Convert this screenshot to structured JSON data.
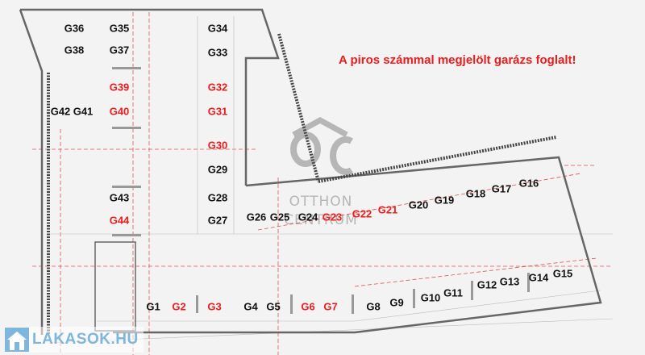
{
  "notice": "A piros számmal megjelölt garázs foglalt!",
  "colors": {
    "occupied": "#ee1c1c",
    "free": "#111111",
    "wall": "#666666",
    "gridline": "#e05050"
  },
  "watermark": {
    "logo": "OC",
    "line1": "OTTHON",
    "line2": "CENTRUM"
  },
  "site_logo": {
    "text": "LAKASOK.HU",
    "icon": "house-icon"
  },
  "garages": [
    {
      "label": "G1",
      "occupied": false
    },
    {
      "label": "G2",
      "occupied": true
    },
    {
      "label": "G3",
      "occupied": true
    },
    {
      "label": "G4",
      "occupied": false
    },
    {
      "label": "G5",
      "occupied": false
    },
    {
      "label": "G6",
      "occupied": true
    },
    {
      "label": "G7",
      "occupied": true
    },
    {
      "label": "G8",
      "occupied": false
    },
    {
      "label": "G9",
      "occupied": false
    },
    {
      "label": "G10",
      "occupied": false
    },
    {
      "label": "G11",
      "occupied": false
    },
    {
      "label": "G12",
      "occupied": false
    },
    {
      "label": "G13",
      "occupied": false
    },
    {
      "label": "G14",
      "occupied": false
    },
    {
      "label": "G15",
      "occupied": false
    },
    {
      "label": "G16",
      "occupied": false
    },
    {
      "label": "G17",
      "occupied": false
    },
    {
      "label": "G18",
      "occupied": false
    },
    {
      "label": "G19",
      "occupied": false
    },
    {
      "label": "G20",
      "occupied": false
    },
    {
      "label": "G21",
      "occupied": true
    },
    {
      "label": "G22",
      "occupied": true
    },
    {
      "label": "G23",
      "occupied": true
    },
    {
      "label": "G24",
      "occupied": false
    },
    {
      "label": "G25",
      "occupied": false
    },
    {
      "label": "G26",
      "occupied": false
    },
    {
      "label": "G27",
      "occupied": false
    },
    {
      "label": "G28",
      "occupied": false
    },
    {
      "label": "G29",
      "occupied": false
    },
    {
      "label": "G30",
      "occupied": true
    },
    {
      "label": "G31",
      "occupied": true
    },
    {
      "label": "G32",
      "occupied": true
    },
    {
      "label": "G33",
      "occupied": false
    },
    {
      "label": "G34",
      "occupied": false
    },
    {
      "label": "G35",
      "occupied": false
    },
    {
      "label": "G36",
      "occupied": false
    },
    {
      "label": "G37",
      "occupied": false
    },
    {
      "label": "G38",
      "occupied": false
    },
    {
      "label": "G39",
      "occupied": true
    },
    {
      "label": "G40",
      "occupied": true
    },
    {
      "label": "G41",
      "occupied": false
    },
    {
      "label": "G42",
      "occupied": false
    },
    {
      "label": "G43",
      "occupied": false
    },
    {
      "label": "G44",
      "occupied": true
    }
  ]
}
